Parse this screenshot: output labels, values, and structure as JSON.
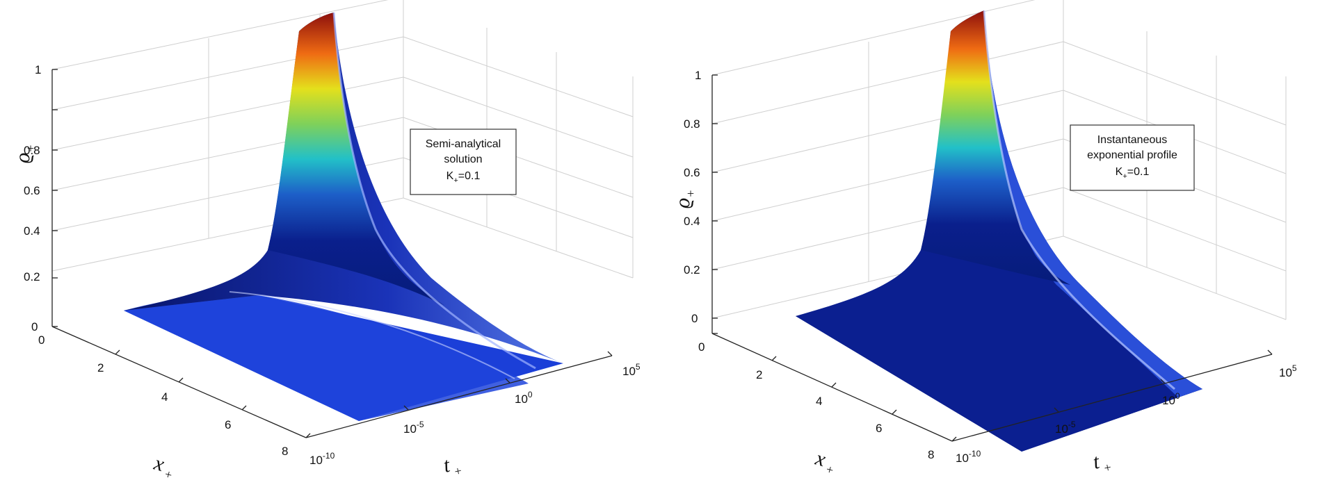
{
  "chart_data": [
    {
      "type": "surface3d",
      "zlabel": "ϱ",
      "zlabel_sub": "+",
      "xlabel": "x",
      "xlabel_sub": "+",
      "ylabel": "t",
      "ylabel_sub": "+",
      "z_ticks": [
        "0",
        "0.2",
        "0.4",
        "0.6",
        "0.8",
        "1"
      ],
      "x_ticks": [
        "0",
        "2",
        "4",
        "6",
        "8"
      ],
      "t_ticks": [
        {
          "base": "10",
          "exp": "-10"
        },
        {
          "base": "10",
          "exp": "-5"
        },
        {
          "base": "10",
          "exp": "0"
        },
        {
          "base": "10",
          "exp": "5"
        }
      ],
      "zlim": [
        0,
        1
      ],
      "xlim": [
        0,
        8
      ],
      "tlim_exponent": [
        -10,
        5
      ],
      "grid": true,
      "colormap": "jet",
      "annotation": {
        "lines": [
          "Semi-analytical",
          "solution"
        ],
        "k_main": "K",
        "k_sub": "+",
        "k_value": "=0.1"
      }
    },
    {
      "type": "surface3d",
      "zlabel": "ϱ",
      "zlabel_sub": "+",
      "xlabel": "x",
      "xlabel_sub": "+",
      "ylabel": "t",
      "ylabel_sub": "+",
      "z_ticks": [
        "0",
        "0.2",
        "0.4",
        "0.6",
        "0.8",
        "1"
      ],
      "x_ticks": [
        "0",
        "2",
        "4",
        "6",
        "8"
      ],
      "t_ticks": [
        {
          "base": "10",
          "exp": "-10"
        },
        {
          "base": "10",
          "exp": "-5"
        },
        {
          "base": "10",
          "exp": "0"
        },
        {
          "base": "10",
          "exp": "5"
        }
      ],
      "zlim": [
        0,
        1
      ],
      "xlim": [
        0,
        8
      ],
      "tlim_exponent": [
        -10,
        5
      ],
      "grid": true,
      "colormap": "jet",
      "annotation": {
        "lines": [
          "Instantaneous",
          "exponential profile"
        ],
        "k_main": "K",
        "k_sub": "+",
        "k_value": "=0.1"
      }
    }
  ]
}
